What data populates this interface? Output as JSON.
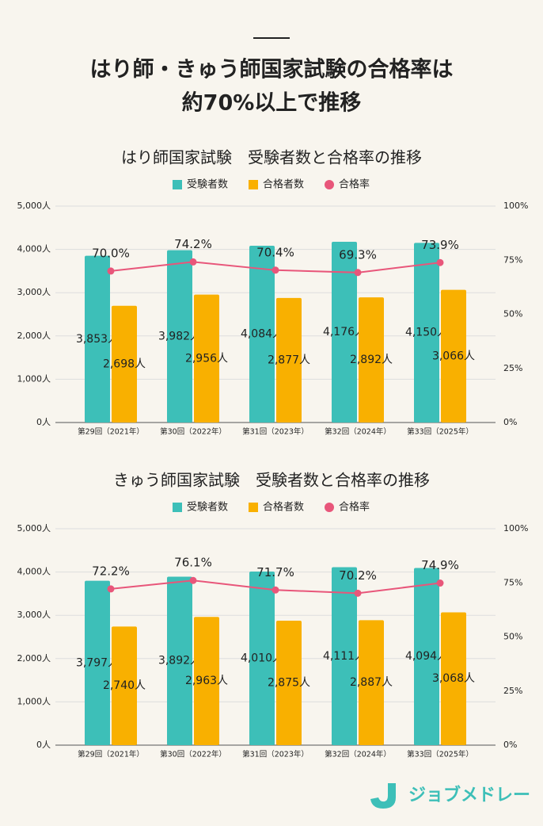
{
  "header": {
    "title": [
      "はり師・きゅう師国家試験の合格率は",
      "約70%以上で推移"
    ]
  },
  "chart_data": [
    {
      "type": "bar_line",
      "title": "はり師国家試験　受験者数と合格率の推移",
      "categories": [
        "第29回（2021年）",
        "第30回（2022年）",
        "第31回（2023年）",
        "第32回（2024年）",
        "第33回（2025年）"
      ],
      "series": [
        {
          "name": "受験者数",
          "color": "#3dbfb8",
          "type": "bar",
          "values": [
            3853,
            3982,
            4084,
            4176,
            4150
          ],
          "value_labels": [
            "3,853人",
            "3,982人",
            "4,084人",
            "4,176人",
            "4,150人"
          ]
        },
        {
          "name": "合格者数",
          "color": "#f9b000",
          "type": "bar",
          "values": [
            2698,
            2956,
            2877,
            2892,
            3066
          ],
          "value_labels": [
            "2,698人",
            "2,956人",
            "2,877人",
            "2,892人",
            "3,066人"
          ]
        },
        {
          "name": "合格率",
          "color": "#e8567a",
          "type": "line",
          "axis": "y2",
          "values": [
            70.0,
            74.2,
            70.4,
            69.3,
            73.9
          ],
          "value_labels": [
            "70.0%",
            "74.2%",
            "70.4%",
            "69.3%",
            "73.9%"
          ]
        }
      ],
      "ylim": [
        0,
        5000
      ],
      "yticks": [
        {
          "value": 0,
          "label": "0人"
        },
        {
          "value": 1000,
          "label": "1,000人"
        },
        {
          "value": 2000,
          "label": "2,000人"
        },
        {
          "value": 3000,
          "label": "3,000人"
        },
        {
          "value": 4000,
          "label": "4,000人"
        },
        {
          "value": 5000,
          "label": "5,000人"
        }
      ],
      "y2lim": [
        0,
        100
      ],
      "y2ticks": [
        {
          "value": 0,
          "label": "0%"
        },
        {
          "value": 25,
          "label": "25%"
        },
        {
          "value": 50,
          "label": "50%"
        },
        {
          "value": 75,
          "label": "75%"
        },
        {
          "value": 100,
          "label": "100%"
        }
      ],
      "grid": true
    },
    {
      "type": "bar_line",
      "title": "きゅう師国家試験　受験者数と合格率の推移",
      "categories": [
        "第29回（2021年）",
        "第30回（2022年）",
        "第31回（2023年）",
        "第32回（2024年）",
        "第33回（2025年）"
      ],
      "series": [
        {
          "name": "受験者数",
          "color": "#3dbfb8",
          "type": "bar",
          "values": [
            3797,
            3892,
            4010,
            4111,
            4094
          ],
          "value_labels": [
            "3,797人",
            "3,892人",
            "4,010人",
            "4,111人",
            "4,094人"
          ]
        },
        {
          "name": "合格者数",
          "color": "#f9b000",
          "type": "bar",
          "values": [
            2740,
            2963,
            2875,
            2887,
            3068
          ],
          "value_labels": [
            "2,740人",
            "2,963人",
            "2,875人",
            "2,887人",
            "3,068人"
          ]
        },
        {
          "name": "合格率",
          "color": "#e8567a",
          "type": "line",
          "axis": "y2",
          "values": [
            72.2,
            76.1,
            71.7,
            70.2,
            74.9
          ],
          "value_labels": [
            "72.2%",
            "76.1%",
            "71.7%",
            "70.2%",
            "74.9%"
          ]
        }
      ],
      "ylim": [
        0,
        5000
      ],
      "yticks": [
        {
          "value": 0,
          "label": "0人"
        },
        {
          "value": 1000,
          "label": "1,000人"
        },
        {
          "value": 2000,
          "label": "2,000人"
        },
        {
          "value": 3000,
          "label": "3,000人"
        },
        {
          "value": 4000,
          "label": "4,000人"
        },
        {
          "value": 5000,
          "label": "5,000人"
        }
      ],
      "y2lim": [
        0,
        100
      ],
      "y2ticks": [
        {
          "value": 0,
          "label": "0%"
        },
        {
          "value": 25,
          "label": "25%"
        },
        {
          "value": 50,
          "label": "50%"
        },
        {
          "value": 75,
          "label": "75%"
        },
        {
          "value": 100,
          "label": "100%"
        }
      ],
      "grid": true
    }
  ],
  "logo": "ジョブメドレー"
}
